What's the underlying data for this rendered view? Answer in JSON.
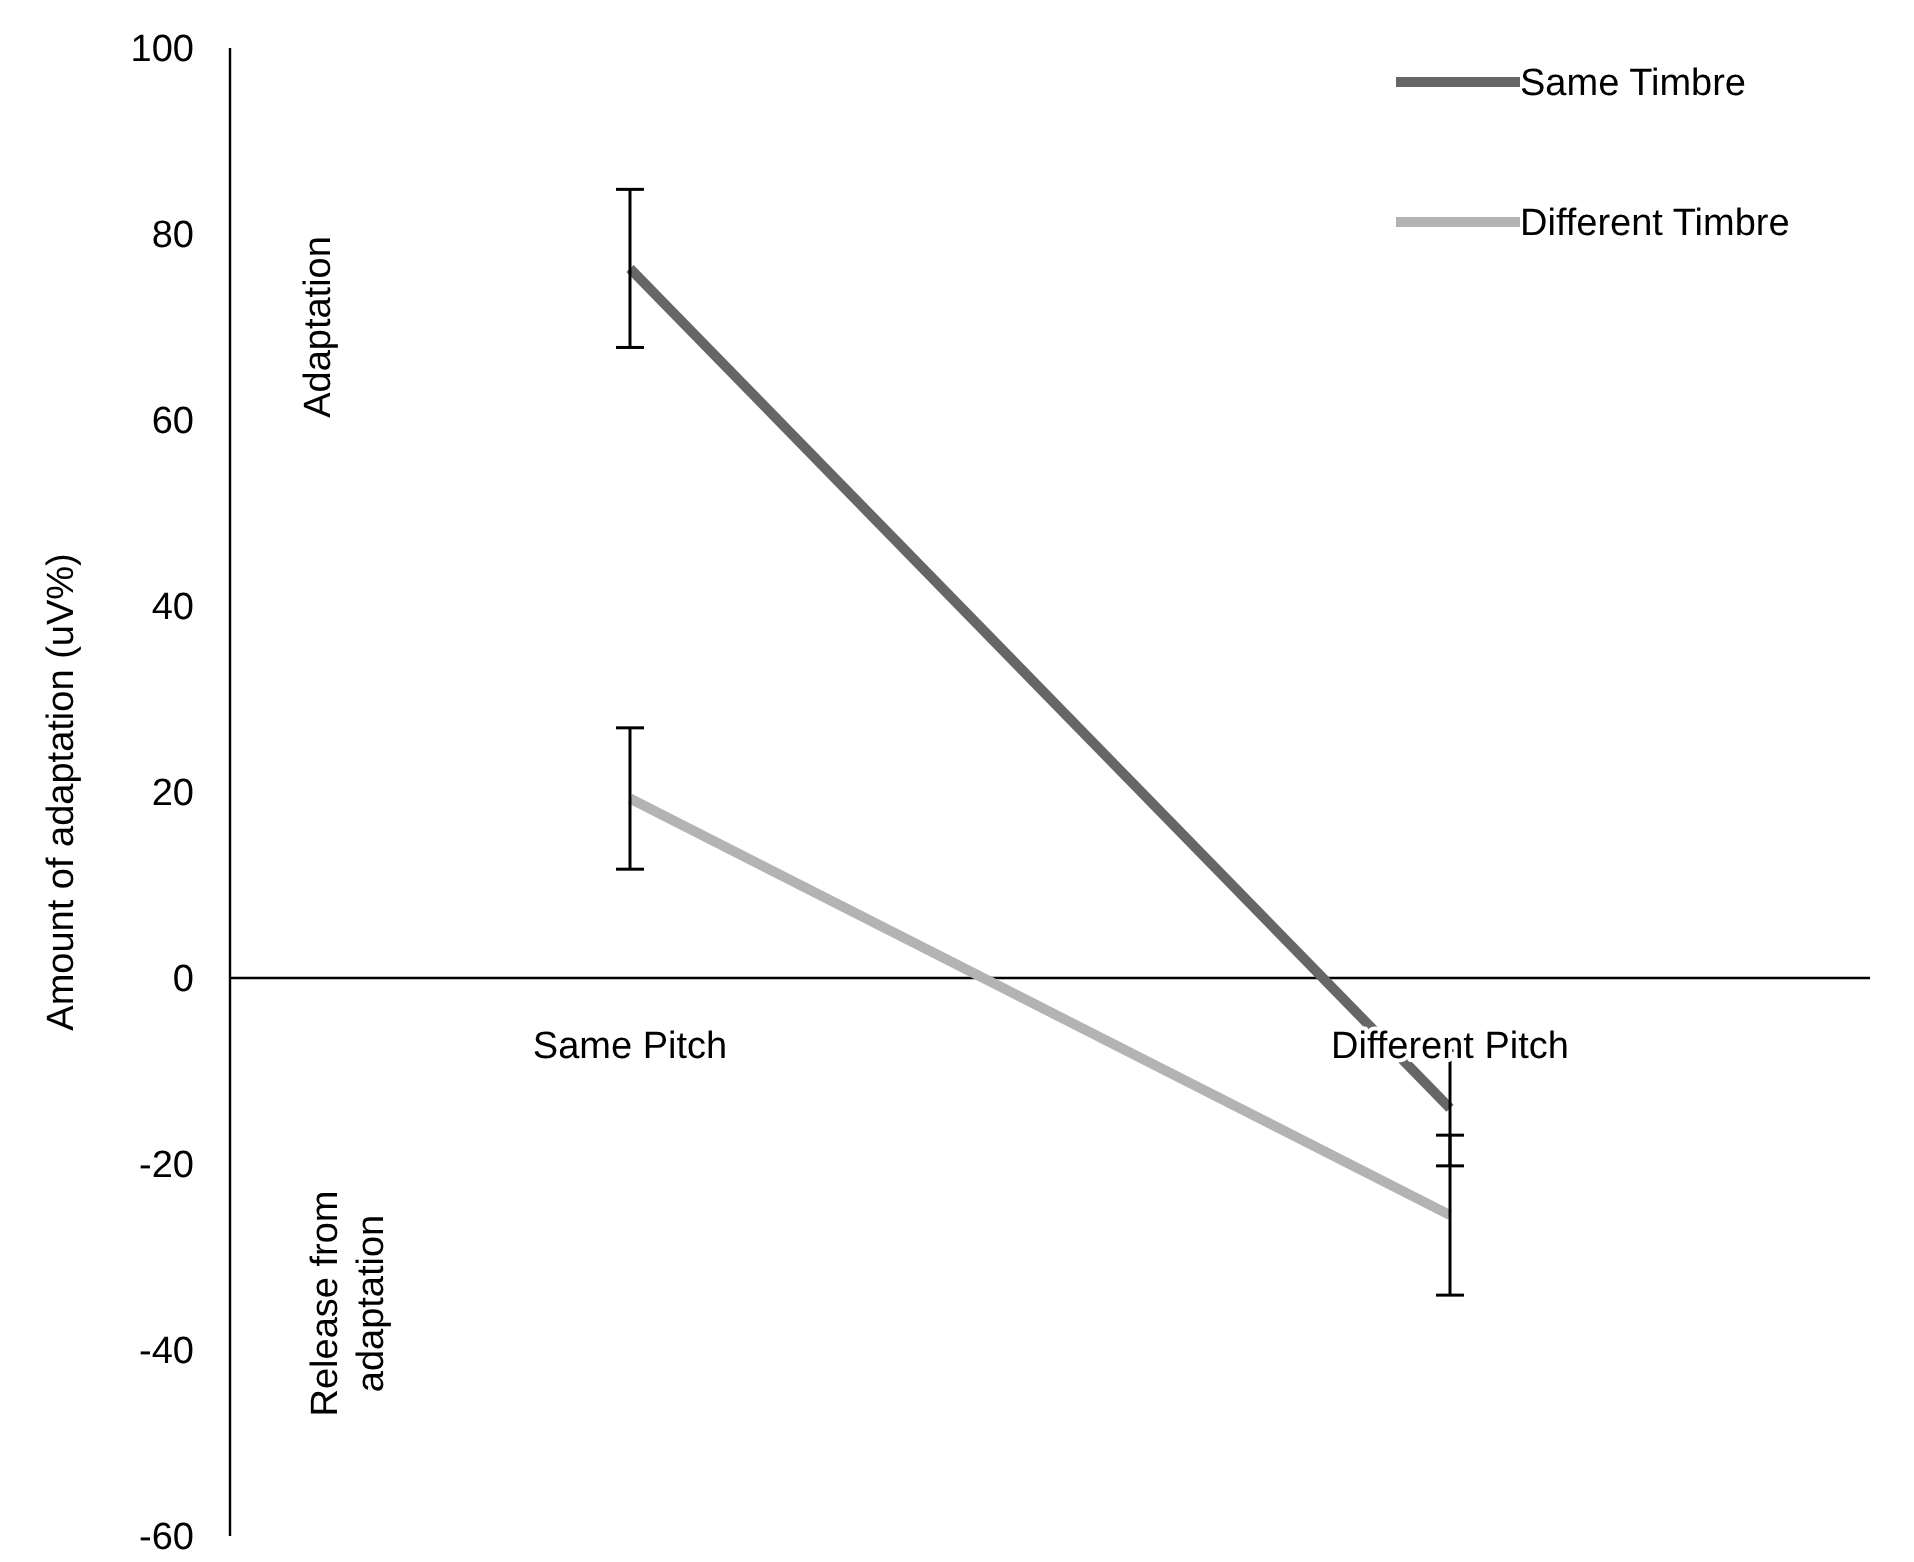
{
  "chart_data": {
    "type": "line",
    "ylabel": "Amount of adaptation (uV%)",
    "categories": [
      "Same Pitch",
      "Different Pitch"
    ],
    "series": [
      {
        "name": "Same Timbre",
        "color": "#666666",
        "values": [
          76.3,
          -14
        ],
        "errors": [
          8.5,
          6.2
        ]
      },
      {
        "name": "Different Timbre",
        "color": "#b3b3b3",
        "values": [
          19.3,
          -25.5
        ],
        "errors": [
          7.6,
          8.6
        ]
      }
    ],
    "ylim": [
      -60,
      100
    ],
    "yticks": [
      -60,
      -40,
      -20,
      0,
      20,
      40,
      60,
      80,
      100
    ],
    "grid": false,
    "legend": "top right",
    "marker": "none",
    "annotations": [
      "Adaptation",
      "Release from adaptation"
    ]
  }
}
